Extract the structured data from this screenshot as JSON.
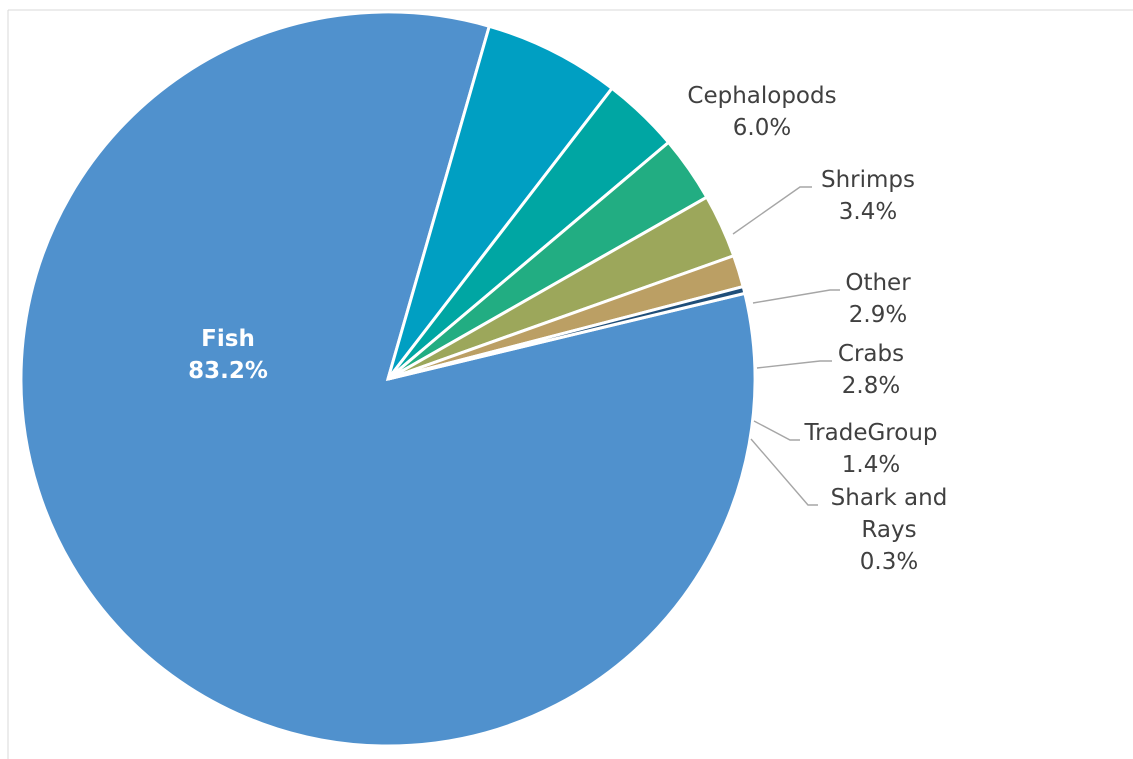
{
  "chart_data": {
    "type": "pie",
    "title": "",
    "slices": [
      {
        "label": [
          "Fish"
        ],
        "percent": "83.2%",
        "value": 83.2,
        "color": "#5091cd"
      },
      {
        "label": [
          "Cephalopods"
        ],
        "percent": "6.0%",
        "value": 6.0,
        "color": "#009fc2"
      },
      {
        "label": [
          "Shrimps"
        ],
        "percent": "3.4%",
        "value": 3.4,
        "color": "#00a6a3"
      },
      {
        "label": [
          "Other"
        ],
        "percent": "2.9%",
        "value": 2.9,
        "color": "#22ad82"
      },
      {
        "label": [
          "Crabs"
        ],
        "percent": "2.8%",
        "value": 2.8,
        "color": "#9ca75b"
      },
      {
        "label": [
          "TradeGroup"
        ],
        "percent": "1.4%",
        "value": 1.4,
        "color": "#bb9f64"
      },
      {
        "label": [
          "Shark and",
          "Rays"
        ],
        "percent": "0.3%",
        "value": 0.3,
        "color": "#1f4e79"
      }
    ],
    "legend": "none",
    "label_style": "outside with leader lines; largest slice labeled inside in bold white"
  }
}
